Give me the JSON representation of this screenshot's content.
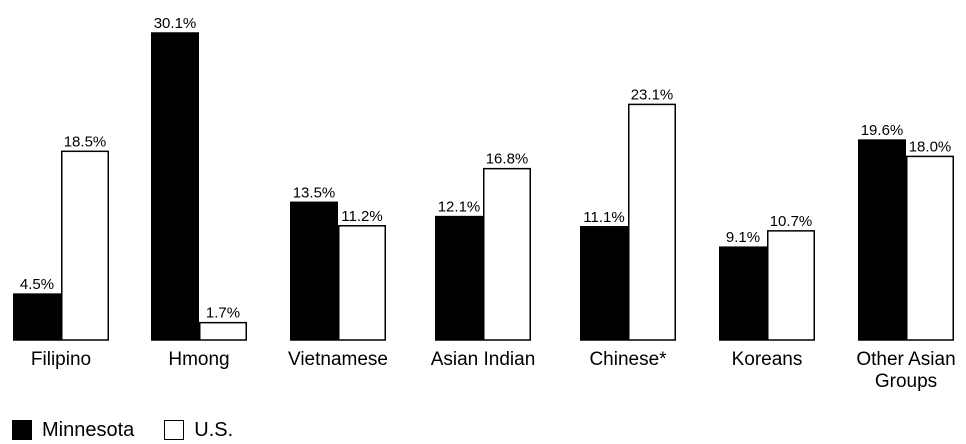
{
  "chart_data": {
    "type": "bar",
    "title": "",
    "xlabel": "",
    "ylabel": "",
    "ylim": [
      0,
      30.1
    ],
    "grid": false,
    "legend_position": "bottom-left",
    "categories": [
      [
        "Filipino"
      ],
      [
        "Hmong"
      ],
      [
        "Vietnamese"
      ],
      [
        "Asian  Indian"
      ],
      [
        "Chinese*"
      ],
      [
        "Koreans"
      ],
      [
        "Other Asian",
        "Groups"
      ]
    ],
    "series": [
      {
        "name": "Minnesota",
        "color": "#000000",
        "values": [
          4.5,
          30.1,
          13.5,
          12.1,
          11.1,
          9.1,
          19.6
        ],
        "labels": [
          "4.5%",
          "30.1%",
          "13.5%",
          "12.1%",
          "11.1%",
          "9.1%",
          "19.6%"
        ]
      },
      {
        "name": "U.S.",
        "color": "#ffffff",
        "values": [
          18.5,
          1.7,
          11.2,
          16.8,
          23.1,
          10.7,
          18.0
        ],
        "labels": [
          "18.5%",
          "1.7%",
          "11.2%",
          "16.8%",
          "23.1%",
          "10.7%",
          "18.0%"
        ]
      }
    ]
  },
  "legend": {
    "minnesota": "Minnesota",
    "us": "U.S."
  }
}
